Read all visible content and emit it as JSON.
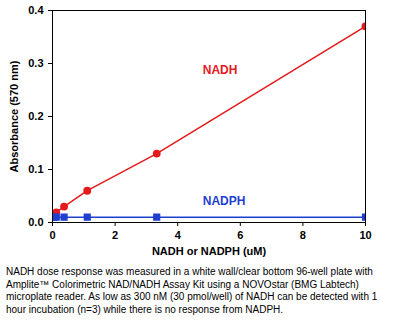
{
  "chart_data": {
    "type": "line",
    "xlabel": "NADH or NADPH (uM)",
    "ylabel": "Absorbance (570 nm)",
    "x": [
      0.04,
      0.12,
      0.37,
      1.11,
      3.33,
      10
    ],
    "series": [
      {
        "name": "NADH",
        "color": "#e41a1c",
        "marker": "circle",
        "values": [
          0.016,
          0.019,
          0.03,
          0.06,
          0.13,
          0.37
        ]
      },
      {
        "name": "NADPH",
        "color": "#1f3fd1",
        "marker": "square",
        "values": [
          0.01,
          0.01,
          0.01,
          0.01,
          0.01,
          0.01
        ]
      }
    ],
    "xlim": [
      0,
      10
    ],
    "xticks": [
      0,
      2,
      4,
      6,
      8,
      10
    ],
    "ylim": [
      0,
      0.4
    ],
    "yticks": [
      {
        "value": 0,
        "label": "0.0"
      },
      0.1,
      0.2,
      0.3,
      0.4
    ],
    "caption": "NADH dose response was measured in a white wall/clear bottom 96-well plate with Amplite™ Colorimetric NAD/NADH Assay Kit using a NOVOstar (BMG Labtech) microplate reader. As low as 300 nM (30 pmol/well) of NADH can be detected with 1 hour incubation (n=3) while there is no response from NADPH."
  }
}
